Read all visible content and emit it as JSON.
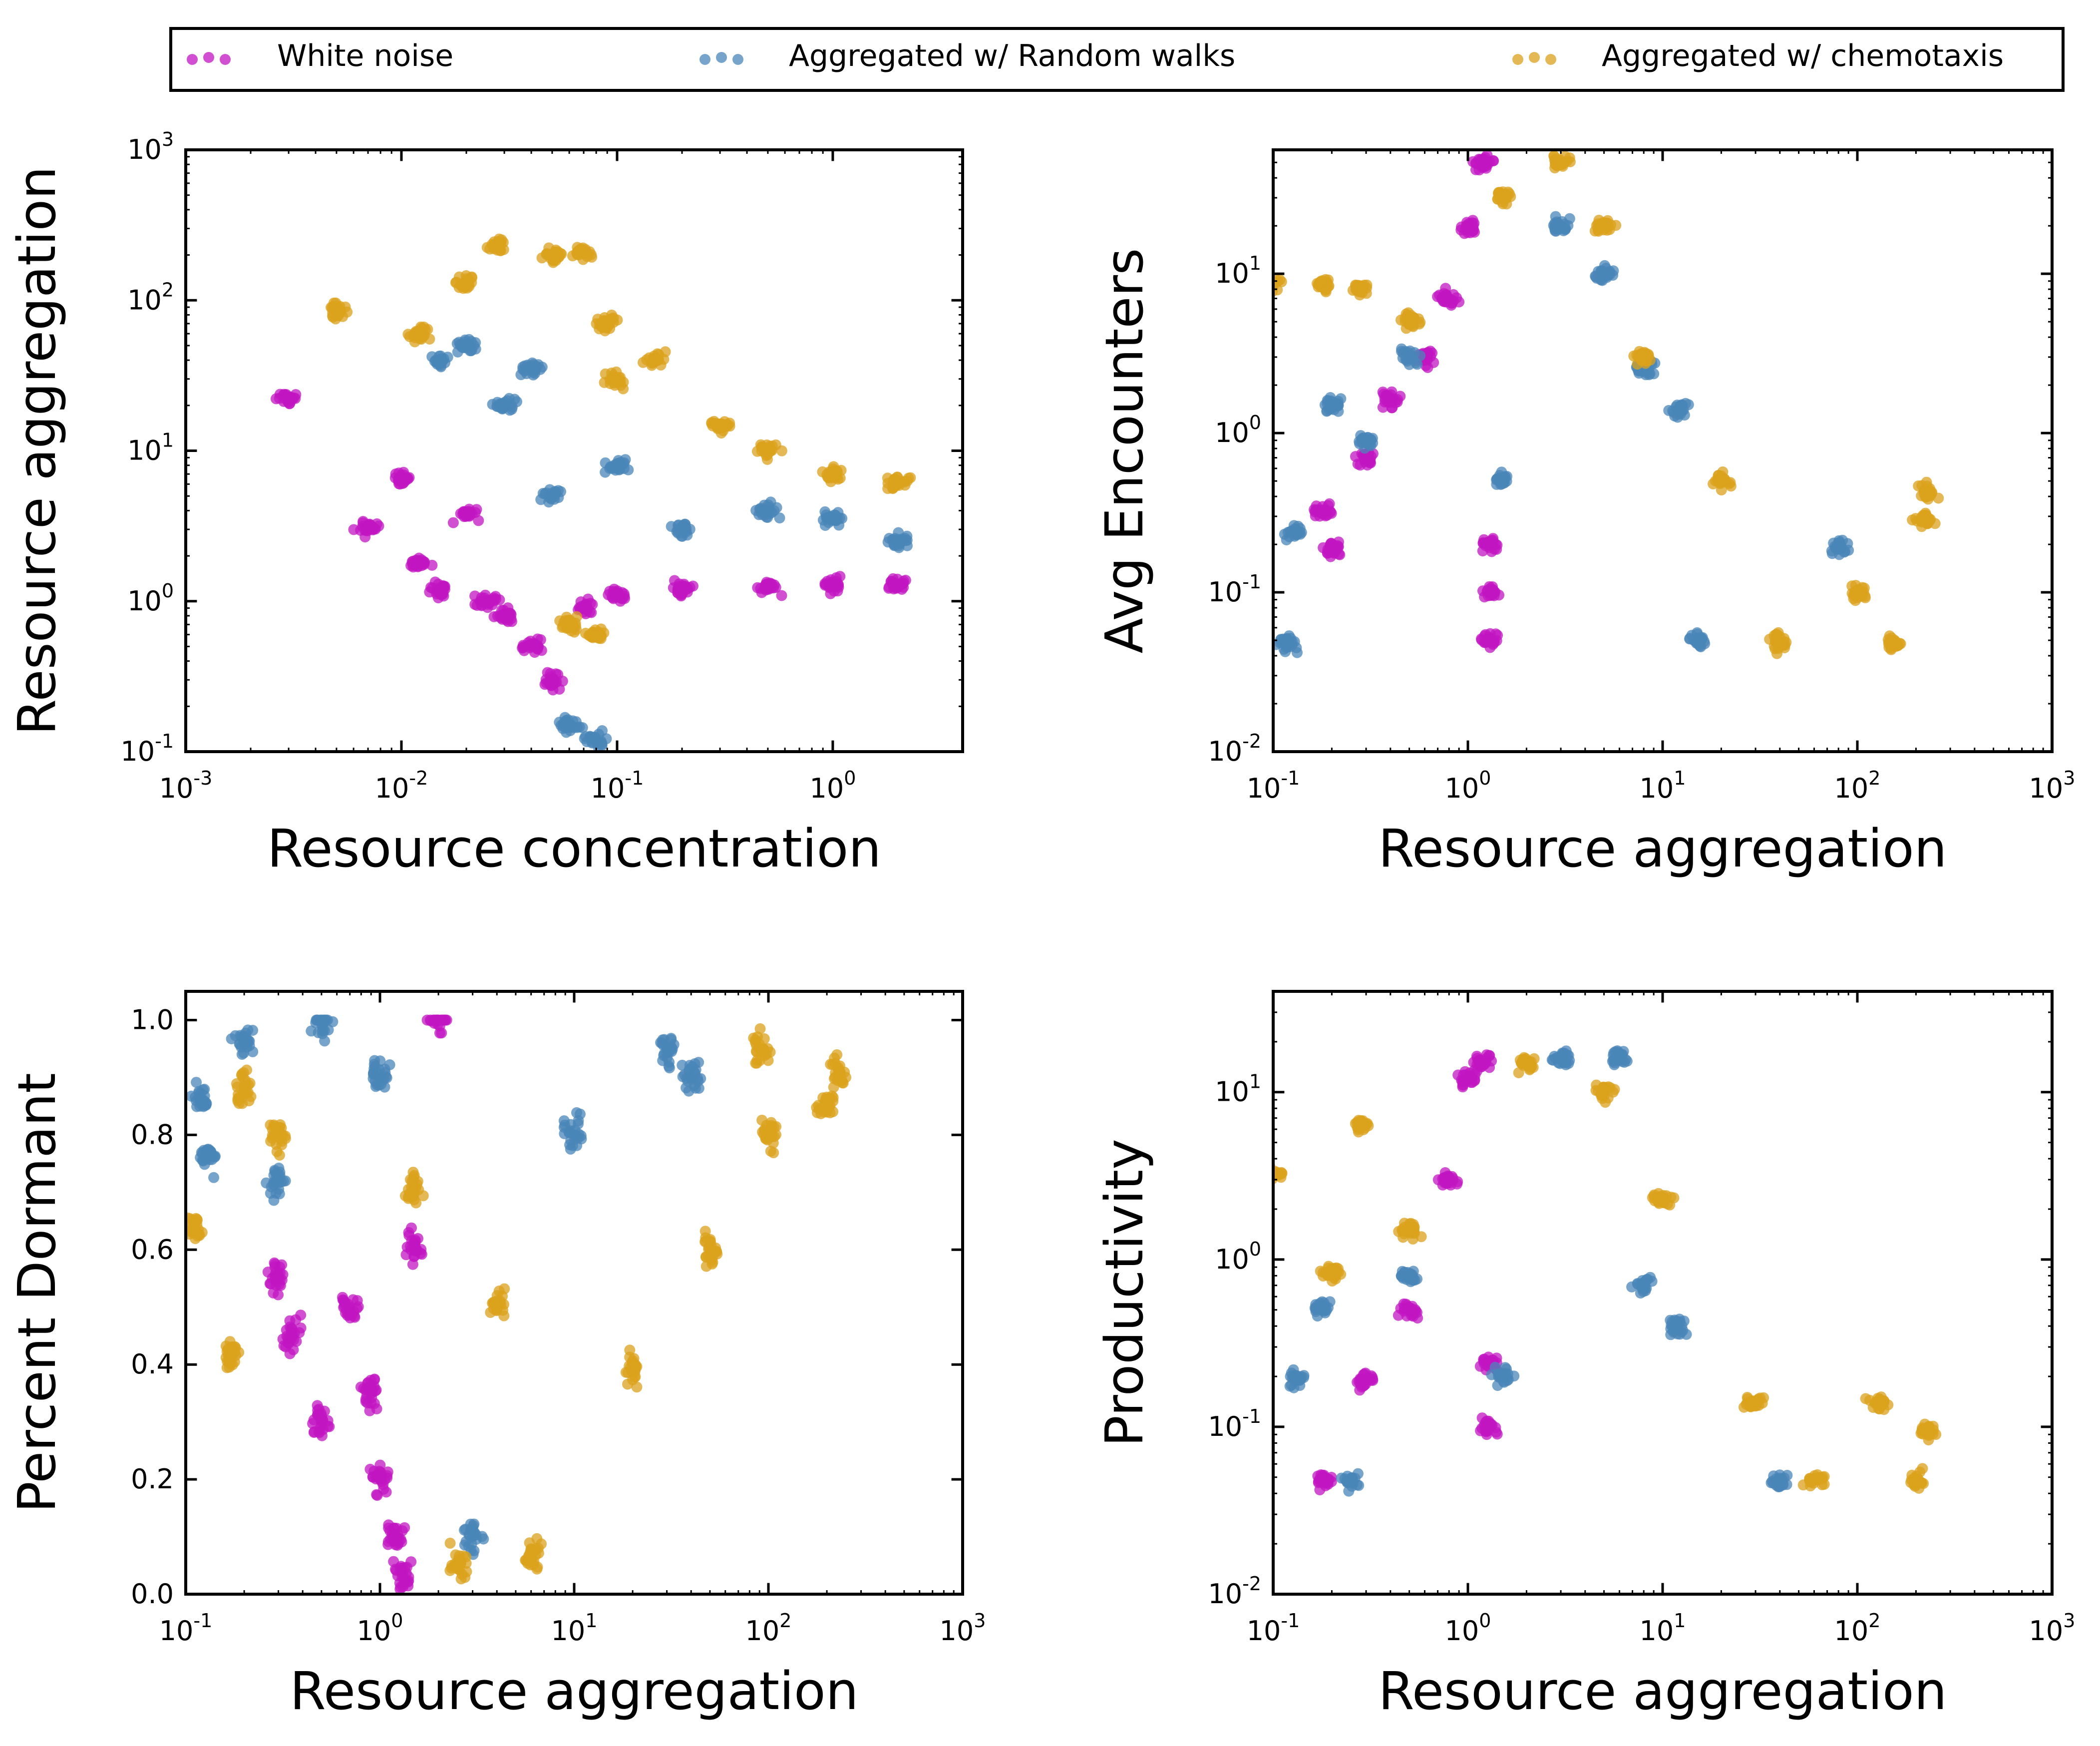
{
  "legend": {
    "items": [
      {
        "label": "White noise",
        "color": "#c116c1"
      },
      {
        "label": "Aggregated w/ Random walks",
        "color": "#4a86b8"
      },
      {
        "label": "Aggregated w/ chemotaxis",
        "color": "#dba21c"
      }
    ],
    "placement": "top, outside plots, single row"
  },
  "chart_data": [
    {
      "type": "scatter",
      "xlabel": "Resource concentration",
      "ylabel": "Resource aggregation",
      "xscale": "log",
      "yscale": "log",
      "xlim": [
        0.001,
        4
      ],
      "ylim": [
        0.1,
        1000
      ],
      "xticks": [
        {
          "base": "10",
          "exp": "-3"
        },
        {
          "base": "10",
          "exp": "-2"
        },
        {
          "base": "10",
          "exp": "-1"
        },
        {
          "base": "10",
          "exp": "0"
        }
      ],
      "yticks": [
        {
          "base": "10",
          "exp": "-1"
        },
        {
          "base": "10",
          "exp": "0"
        },
        {
          "base": "10",
          "exp": "1"
        },
        {
          "base": "10",
          "exp": "2"
        },
        {
          "base": "10",
          "exp": "3"
        }
      ],
      "series": [
        {
          "name": "White noise",
          "color": "#c116c1",
          "points": [
            [
              0.003,
              22
            ],
            [
              0.007,
              3.1
            ],
            [
              0.01,
              6.5
            ],
            [
              0.012,
              1.8
            ],
            [
              0.015,
              1.2
            ],
            [
              0.02,
              3.8
            ],
            [
              0.025,
              1.0
            ],
            [
              0.03,
              0.8
            ],
            [
              0.04,
              0.5
            ],
            [
              0.05,
              0.3
            ],
            [
              0.07,
              0.9
            ],
            [
              0.1,
              1.1
            ],
            [
              0.2,
              1.2
            ],
            [
              0.5,
              1.25
            ],
            [
              1.0,
              1.3
            ],
            [
              2.0,
              1.3
            ]
          ]
        },
        {
          "name": "Aggregated w/ Random walks",
          "color": "#4a86b8",
          "points": [
            [
              0.015,
              40
            ],
            [
              0.02,
              50
            ],
            [
              0.03,
              20
            ],
            [
              0.04,
              35
            ],
            [
              0.05,
              5
            ],
            [
              0.06,
              0.15
            ],
            [
              0.08,
              0.12
            ],
            [
              0.1,
              8
            ],
            [
              0.2,
              3
            ],
            [
              0.5,
              4
            ],
            [
              1.0,
              3.5
            ],
            [
              2.0,
              2.5
            ]
          ]
        },
        {
          "name": "Aggregated w/ chemotaxis",
          "color": "#dba21c",
          "points": [
            [
              0.005,
              85
            ],
            [
              0.012,
              60
            ],
            [
              0.02,
              130
            ],
            [
              0.028,
              230
            ],
            [
              0.05,
              200
            ],
            [
              0.07,
              210
            ],
            [
              0.09,
              70
            ],
            [
              0.1,
              30
            ],
            [
              0.15,
              40
            ],
            [
              0.3,
              15
            ],
            [
              0.5,
              10
            ],
            [
              1.0,
              7
            ],
            [
              2.0,
              6
            ],
            [
              0.06,
              0.7
            ],
            [
              0.08,
              0.6
            ]
          ]
        }
      ]
    },
    {
      "type": "scatter",
      "xlabel": "Resource aggregation",
      "ylabel": "Avg Encounters",
      "xscale": "log",
      "yscale": "log",
      "xlim": [
        0.1,
        1000
      ],
      "ylim": [
        0.01,
        60
      ],
      "xticks": [
        {
          "base": "10",
          "exp": "-1"
        },
        {
          "base": "10",
          "exp": "0"
        },
        {
          "base": "10",
          "exp": "1"
        },
        {
          "base": "10",
          "exp": "2"
        },
        {
          "base": "10",
          "exp": "3"
        }
      ],
      "yticks": [
        {
          "base": "10",
          "exp": "-2"
        },
        {
          "base": "10",
          "exp": "-1"
        },
        {
          "base": "10",
          "exp": "0"
        },
        {
          "base": "10",
          "exp": "1"
        }
      ],
      "series": [
        {
          "name": "White noise",
          "color": "#c116c1",
          "points": [
            [
              0.18,
              0.33
            ],
            [
              0.2,
              0.19
            ],
            [
              0.3,
              0.7
            ],
            [
              0.4,
              1.6
            ],
            [
              0.6,
              3.0
            ],
            [
              0.8,
              7
            ],
            [
              1.0,
              20
            ],
            [
              1.2,
              50
            ],
            [
              1.3,
              0.05
            ],
            [
              1.3,
              0.1
            ],
            [
              1.3,
              0.2
            ]
          ]
        },
        {
          "name": "Aggregated w/ Random walks",
          "color": "#4a86b8",
          "points": [
            [
              0.12,
              0.048
            ],
            [
              0.13,
              0.24
            ],
            [
              0.2,
              1.5
            ],
            [
              0.3,
              0.9
            ],
            [
              0.5,
              3.0
            ],
            [
              1.5,
              0.5
            ],
            [
              3,
              20
            ],
            [
              5,
              10
            ],
            [
              8,
              2.5
            ],
            [
              12,
              1.4
            ],
            [
              15,
              0.05
            ],
            [
              80,
              0.19
            ]
          ]
        },
        {
          "name": "Aggregated w/ chemotaxis",
          "color": "#dba21c",
          "points": [
            [
              0.1,
              8.3
            ],
            [
              0.18,
              8.5
            ],
            [
              0.28,
              8.0
            ],
            [
              0.5,
              5
            ],
            [
              1.5,
              30
            ],
            [
              3,
              50
            ],
            [
              5,
              20
            ],
            [
              8,
              3
            ],
            [
              20,
              0.5
            ],
            [
              40,
              0.048
            ],
            [
              100,
              0.1
            ],
            [
              150,
              0.048
            ],
            [
              230,
              0.43
            ],
            [
              220,
              0.29
            ]
          ]
        }
      ]
    },
    {
      "type": "scatter",
      "xlabel": "Resource aggregation",
      "ylabel": "Percent Dormant",
      "xscale": "log",
      "yscale": "linear",
      "xlim": [
        0.1,
        1000
      ],
      "ylim": [
        0.0,
        1.05
      ],
      "xticks": [
        {
          "base": "10",
          "exp": "-1"
        },
        {
          "base": "10",
          "exp": "0"
        },
        {
          "base": "10",
          "exp": "1"
        },
        {
          "base": "10",
          "exp": "2"
        },
        {
          "base": "10",
          "exp": "3"
        }
      ],
      "yticks": [
        "0.0",
        "0.2",
        "0.4",
        "0.6",
        "0.8",
        "1.0"
      ],
      "series": [
        {
          "name": "White noise",
          "color": "#c116c1",
          "points": [
            [
              0.3,
              0.55
            ],
            [
              0.35,
              0.45
            ],
            [
              0.5,
              0.3
            ],
            [
              0.7,
              0.5
            ],
            [
              0.9,
              0.35
            ],
            [
              1.0,
              0.2
            ],
            [
              1.2,
              0.1
            ],
            [
              1.3,
              0.03
            ],
            [
              1.5,
              0.6
            ],
            [
              2.0,
              1.0
            ]
          ]
        },
        {
          "name": "Aggregated w/ Random walks",
          "color": "#4a86b8",
          "points": [
            [
              0.12,
              0.86
            ],
            [
              0.13,
              0.76
            ],
            [
              0.2,
              0.96
            ],
            [
              0.3,
              0.72
            ],
            [
              0.5,
              1.0
            ],
            [
              1.0,
              0.9
            ],
            [
              3,
              0.1
            ],
            [
              10,
              0.8
            ],
            [
              30,
              0.95
            ],
            [
              40,
              0.9
            ]
          ]
        },
        {
          "name": "Aggregated w/ chemotaxis",
          "color": "#dba21c",
          "points": [
            [
              0.11,
              0.64
            ],
            [
              0.17,
              0.42
            ],
            [
              0.2,
              0.88
            ],
            [
              0.3,
              0.8
            ],
            [
              1.5,
              0.7
            ],
            [
              2.5,
              0.05
            ],
            [
              4,
              0.5
            ],
            [
              6,
              0.06
            ],
            [
              20,
              0.4
            ],
            [
              50,
              0.6
            ],
            [
              100,
              0.8
            ],
            [
              200,
              0.85
            ],
            [
              230,
              0.91
            ],
            [
              90,
              0.95
            ]
          ]
        }
      ]
    },
    {
      "type": "scatter",
      "xlabel": "Resource aggregation",
      "ylabel": "Productivity",
      "xscale": "log",
      "yscale": "log",
      "xlim": [
        0.1,
        1000
      ],
      "ylim": [
        0.01,
        40
      ],
      "xticks": [
        {
          "base": "10",
          "exp": "-1"
        },
        {
          "base": "10",
          "exp": "0"
        },
        {
          "base": "10",
          "exp": "1"
        },
        {
          "base": "10",
          "exp": "2"
        },
        {
          "base": "10",
          "exp": "3"
        }
      ],
      "yticks": [
        {
          "base": "10",
          "exp": "-2"
        },
        {
          "base": "10",
          "exp": "-1"
        },
        {
          "base": "10",
          "exp": "0"
        },
        {
          "base": "10",
          "exp": "1"
        }
      ],
      "series": [
        {
          "name": "White noise",
          "color": "#c116c1",
          "points": [
            [
              0.18,
              0.048
            ],
            [
              0.3,
              0.19
            ],
            [
              0.5,
              0.5
            ],
            [
              0.8,
              3
            ],
            [
              1.0,
              12
            ],
            [
              1.2,
              15
            ],
            [
              1.3,
              0.1
            ],
            [
              1.3,
              0.24
            ]
          ]
        },
        {
          "name": "Aggregated w/ Random walks",
          "color": "#4a86b8",
          "points": [
            [
              0.13,
              0.19
            ],
            [
              0.18,
              0.52
            ],
            [
              0.25,
              0.048
            ],
            [
              0.5,
              0.8
            ],
            [
              1.5,
              0.2
            ],
            [
              3,
              16
            ],
            [
              6,
              16
            ],
            [
              8,
              0.7
            ],
            [
              12,
              0.4
            ],
            [
              40,
              0.048
            ]
          ]
        },
        {
          "name": "Aggregated w/ chemotaxis",
          "color": "#dba21c",
          "points": [
            [
              0.1,
              3.2
            ],
            [
              0.2,
              0.85
            ],
            [
              0.28,
              6.3
            ],
            [
              0.5,
              1.5
            ],
            [
              2,
              15
            ],
            [
              5,
              10
            ],
            [
              10,
              2.3
            ],
            [
              30,
              0.14
            ],
            [
              60,
              0.048
            ],
            [
              130,
              0.14
            ],
            [
              230,
              0.095
            ],
            [
              200,
              0.048
            ]
          ]
        }
      ]
    }
  ]
}
